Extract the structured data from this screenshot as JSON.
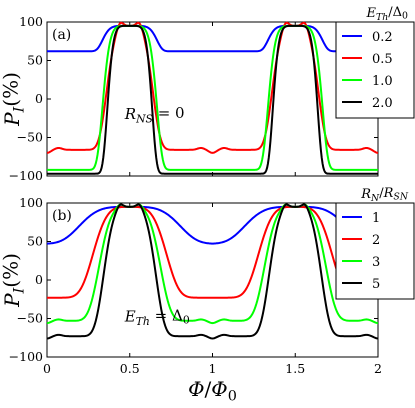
{
  "figure": {
    "xlabel": "Φ/Φ0",
    "ylabel": "P_I(%)"
  },
  "chart_data": [
    {
      "type": "line",
      "panel_label": "(a)",
      "xlim": [
        0,
        2
      ],
      "ylim": [
        -100,
        100
      ],
      "xticks": [
        "0",
        "0.5",
        "1",
        "1.5",
        "2"
      ],
      "yticks": [
        "-100",
        "-50",
        "0",
        "50",
        "100"
      ],
      "annotation": "R_NS = 0",
      "legend_title": "E_Th/Δ0",
      "legend_position": "top-right",
      "series": [
        {
          "name": "0.2",
          "color": "#0000ff",
          "min": 62,
          "width": 0.17,
          "sharp": 3
        },
        {
          "name": "0.5",
          "color": "#ff0000",
          "min": -66,
          "width": 0.15,
          "sharp": 2,
          "bump": 7,
          "dip": 4
        },
        {
          "name": "1.0",
          "color": "#00ff00",
          "min": -92,
          "width": 0.17,
          "sharp": 3
        },
        {
          "name": "2.0",
          "color": "#000000",
          "min": -97,
          "width": 0.14,
          "sharp": 3
        }
      ]
    },
    {
      "type": "line",
      "panel_label": "(b)",
      "xlim": [
        0,
        2
      ],
      "ylim": [
        -100,
        100
      ],
      "xticks": [
        "0",
        "0.5",
        "1",
        "1.5",
        "2"
      ],
      "yticks": [
        "-100",
        "-50",
        "0",
        "50",
        "100"
      ],
      "annotation": "E_Th = Δ0",
      "legend_title": "R_N/R_SN",
      "legend_position": "top-right",
      "series": [
        {
          "name": "1",
          "color": "#0000ff",
          "min": 47,
          "width": 0.33,
          "sharp": 2
        },
        {
          "name": "2",
          "color": "#ff0000",
          "min": -23,
          "width": 0.24,
          "sharp": 2
        },
        {
          "name": "3",
          "color": "#00ff00",
          "min": -53,
          "width": 0.2,
          "sharp": 2,
          "bump": 4,
          "dip": 3
        },
        {
          "name": "5",
          "color": "#000000",
          "min": -73,
          "width": 0.17,
          "sharp": 2,
          "bump": 5,
          "dip": 3
        }
      ]
    }
  ]
}
